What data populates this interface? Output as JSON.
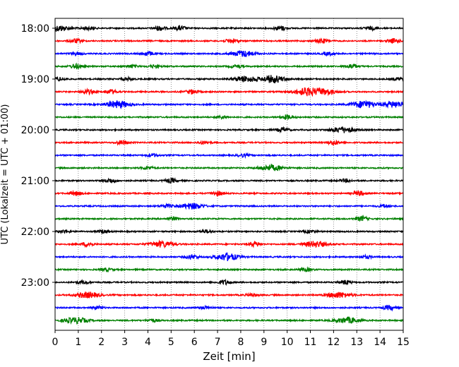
{
  "chart_data": {
    "type": "line",
    "title": "",
    "xlabel": "Zeit  [min]",
    "ylabel": "UTC (Lokalzeit = UTC + 01:00)",
    "xlim": [
      0,
      15
    ],
    "x_ticks": [
      "0",
      "1",
      "2",
      "3",
      "4",
      "5",
      "6",
      "7",
      "8",
      "9",
      "10",
      "11",
      "12",
      "13",
      "14",
      "15"
    ],
    "y_tick_labels": [
      "18:00",
      "19:00",
      "20:00",
      "21:00",
      "22:00",
      "23:00"
    ],
    "trace_start": "18:00",
    "trace_interval_min": 15,
    "trace_count": 24,
    "trace_colors": [
      "#000000",
      "#ff0000",
      "#0000ff",
      "#008000"
    ],
    "vertical_grid": true,
    "vertical_grid_style": "dotted",
    "traces": [
      {
        "start": "18:00",
        "events": [
          {
            "t": 0.1,
            "a": 4
          },
          {
            "t": 1.4,
            "a": 2
          },
          {
            "t": 4.5,
            "a": 3
          },
          {
            "t": 5.4,
            "a": 3
          },
          {
            "t": 9.7,
            "a": 3
          },
          {
            "t": 13.6,
            "a": 2
          }
        ]
      },
      {
        "start": "18:15",
        "events": [
          {
            "t": 0.9,
            "a": 3
          },
          {
            "t": 7.6,
            "a": 3
          },
          {
            "t": 11.5,
            "a": 3
          },
          {
            "t": 14.6,
            "a": 3
          }
        ]
      },
      {
        "start": "18:30",
        "events": [
          {
            "t": 0.9,
            "a": 2
          },
          {
            "t": 4.0,
            "a": 3
          },
          {
            "t": 8.1,
            "a": 4
          },
          {
            "t": 11.8,
            "a": 2
          }
        ]
      },
      {
        "start": "18:45",
        "events": [
          {
            "t": 0.9,
            "a": 3
          },
          {
            "t": 3.3,
            "a": 2
          },
          {
            "t": 4.3,
            "a": 2
          },
          {
            "t": 7.8,
            "a": 2
          },
          {
            "t": 12.8,
            "a": 3
          }
        ]
      },
      {
        "start": "19:00",
        "events": [
          {
            "t": 0.2,
            "a": 2
          },
          {
            "t": 3.1,
            "a": 2
          },
          {
            "t": 8.2,
            "a": 4
          },
          {
            "t": 9.4,
            "a": 5
          },
          {
            "t": 14.8,
            "a": 2
          }
        ]
      },
      {
        "start": "19:15",
        "events": [
          {
            "t": 1.4,
            "a": 3
          },
          {
            "t": 2.4,
            "a": 3
          },
          {
            "t": 5.9,
            "a": 3
          },
          {
            "t": 10.8,
            "a": 5
          },
          {
            "t": 11.6,
            "a": 4
          }
        ]
      },
      {
        "start": "19:30",
        "events": [
          {
            "t": 2.7,
            "a": 5
          },
          {
            "t": 13.3,
            "a": 5
          },
          {
            "t": 14.6,
            "a": 4
          }
        ]
      },
      {
        "start": "19:45",
        "events": [
          {
            "t": 7.2,
            "a": 2
          },
          {
            "t": 10.0,
            "a": 3
          }
        ]
      },
      {
        "start": "20:00",
        "events": [
          {
            "t": 9.8,
            "a": 3
          },
          {
            "t": 12.4,
            "a": 4
          }
        ]
      },
      {
        "start": "20:15",
        "events": [
          {
            "t": 2.9,
            "a": 3
          },
          {
            "t": 6.4,
            "a": 2
          },
          {
            "t": 12.0,
            "a": 3
          }
        ]
      },
      {
        "start": "20:30",
        "events": [
          {
            "t": 4.2,
            "a": 2
          },
          {
            "t": 8.1,
            "a": 2
          }
        ]
      },
      {
        "start": "20:45",
        "events": [
          {
            "t": 4.0,
            "a": 2
          },
          {
            "t": 9.3,
            "a": 4
          }
        ]
      },
      {
        "start": "21:00",
        "events": [
          {
            "t": 2.4,
            "a": 3
          },
          {
            "t": 5.0,
            "a": 3
          },
          {
            "t": 12.5,
            "a": 2
          }
        ]
      },
      {
        "start": "21:15",
        "events": [
          {
            "t": 0.9,
            "a": 3
          },
          {
            "t": 7.0,
            "a": 3
          },
          {
            "t": 13.1,
            "a": 3
          }
        ]
      },
      {
        "start": "21:30",
        "events": [
          {
            "t": 4.8,
            "a": 2
          },
          {
            "t": 5.9,
            "a": 4
          },
          {
            "t": 14.2,
            "a": 2
          }
        ]
      },
      {
        "start": "21:45",
        "events": [
          {
            "t": 5.1,
            "a": 2
          },
          {
            "t": 13.2,
            "a": 3
          }
        ]
      },
      {
        "start": "22:00",
        "events": [
          {
            "t": 0.4,
            "a": 2
          },
          {
            "t": 2.1,
            "a": 2
          },
          {
            "t": 6.5,
            "a": 2
          },
          {
            "t": 11.0,
            "a": 2
          }
        ]
      },
      {
        "start": "22:15",
        "events": [
          {
            "t": 1.4,
            "a": 3
          },
          {
            "t": 4.6,
            "a": 4
          },
          {
            "t": 8.6,
            "a": 3
          },
          {
            "t": 11.2,
            "a": 4
          }
        ]
      },
      {
        "start": "22:30",
        "events": [
          {
            "t": 5.9,
            "a": 3
          },
          {
            "t": 7.4,
            "a": 5
          },
          {
            "t": 13.4,
            "a": 2
          }
        ]
      },
      {
        "start": "22:45",
        "events": [
          {
            "t": 2.2,
            "a": 2
          },
          {
            "t": 10.8,
            "a": 2
          }
        ]
      },
      {
        "start": "23:00",
        "events": [
          {
            "t": 1.2,
            "a": 2
          },
          {
            "t": 7.3,
            "a": 3
          },
          {
            "t": 12.5,
            "a": 3
          }
        ]
      },
      {
        "start": "23:15",
        "events": [
          {
            "t": 1.4,
            "a": 4
          },
          {
            "t": 8.5,
            "a": 2
          },
          {
            "t": 12.2,
            "a": 4
          }
        ]
      },
      {
        "start": "23:30",
        "events": [
          {
            "t": 1.8,
            "a": 2
          },
          {
            "t": 6.5,
            "a": 2
          },
          {
            "t": 14.4,
            "a": 3
          }
        ]
      },
      {
        "start": "23:45",
        "events": [
          {
            "t": 0.9,
            "a": 4
          },
          {
            "t": 4.2,
            "a": 2
          },
          {
            "t": 12.6,
            "a": 4
          }
        ]
      }
    ]
  }
}
